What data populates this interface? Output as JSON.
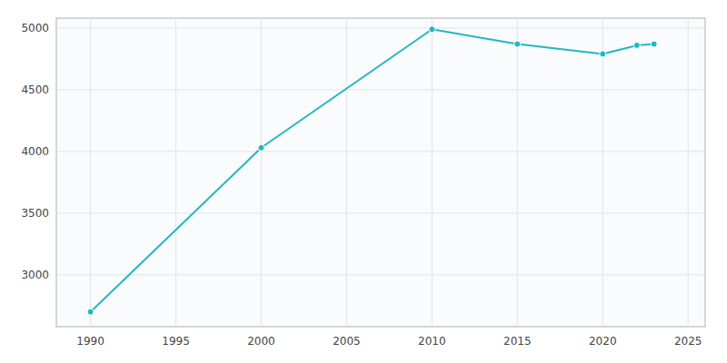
{
  "chart_data": {
    "type": "line",
    "x": [
      1990,
      2000,
      2010,
      2015,
      2020,
      2022,
      2023
    ],
    "values": [
      2700,
      4030,
      4990,
      4870,
      4790,
      4860,
      4870
    ],
    "color": "#20b8c0",
    "marker": "circle",
    "xlim": [
      1988,
      2026
    ],
    "ylim": [
      2580,
      5080
    ],
    "xticks": [
      1990,
      1995,
      2000,
      2005,
      2010,
      2015,
      2020,
      2025
    ],
    "yticks": [
      3000,
      3500,
      4000,
      4500,
      5000
    ],
    "grid": true
  }
}
